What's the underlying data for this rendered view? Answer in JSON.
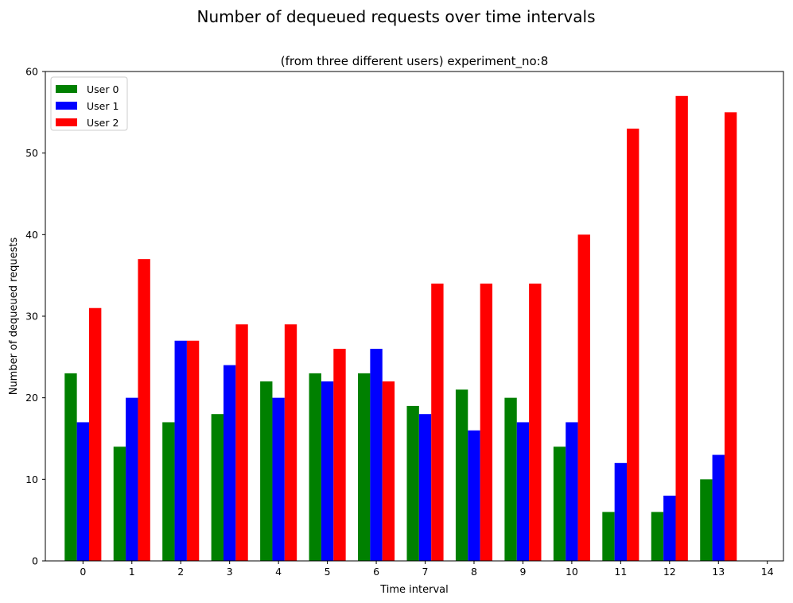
{
  "chart_data": {
    "type": "bar",
    "suptitle": "Number of dequeued requests over time intervals",
    "title": "(from three different users) experiment_no:8",
    "xlabel": "Time interval",
    "ylabel": "Number of dequeued requests",
    "categories": [
      "0",
      "1",
      "2",
      "3",
      "4",
      "5",
      "6",
      "7",
      "8",
      "9",
      "10",
      "11",
      "12",
      "13"
    ],
    "xticks": [
      "0",
      "1",
      "2",
      "3",
      "4",
      "5",
      "6",
      "7",
      "8",
      "9",
      "10",
      "11",
      "12",
      "13",
      "14"
    ],
    "ylim": [
      0,
      60
    ],
    "yticks": [
      0,
      10,
      20,
      30,
      40,
      50,
      60
    ],
    "legend_position": "top-left",
    "series": [
      {
        "name": "User 0",
        "color": "#008000",
        "values": [
          23,
          14,
          17,
          18,
          22,
          23,
          23,
          19,
          21,
          20,
          14,
          6,
          6,
          10
        ]
      },
      {
        "name": "User 1",
        "color": "#0000ff",
        "values": [
          17,
          20,
          27,
          24,
          20,
          22,
          26,
          18,
          16,
          17,
          17,
          12,
          8,
          13
        ]
      },
      {
        "name": "User 2",
        "color": "#ff0000",
        "values": [
          31,
          37,
          27,
          29,
          29,
          26,
          22,
          34,
          34,
          34,
          40,
          53,
          57,
          55
        ]
      }
    ]
  }
}
